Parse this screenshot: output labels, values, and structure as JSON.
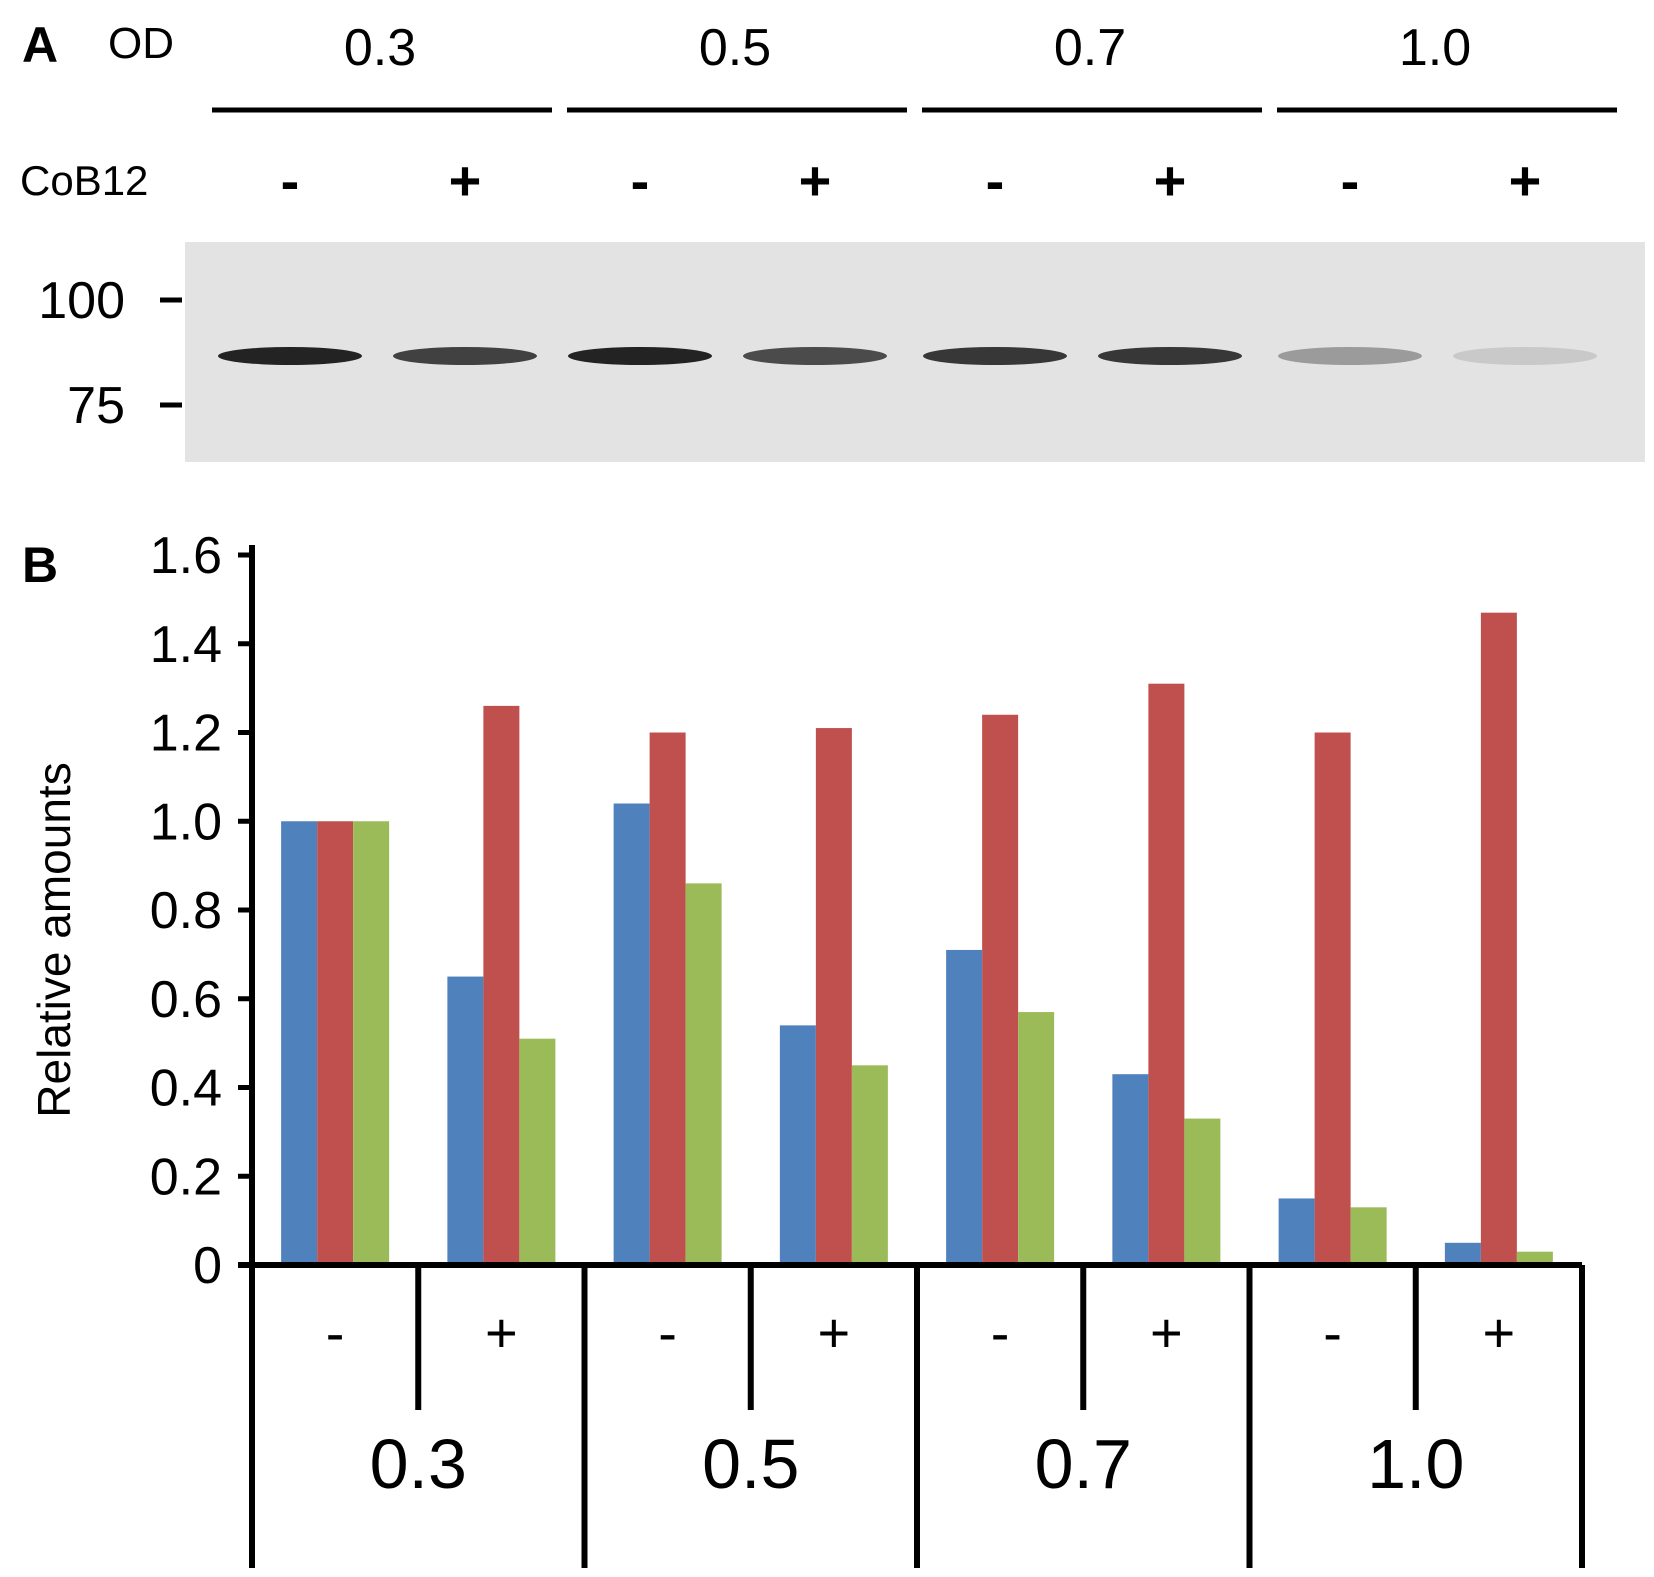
{
  "panel_a": {
    "label": "A",
    "od_label": "OD",
    "groups": [
      "0.3",
      "0.5",
      "0.7",
      "1.0"
    ],
    "treatment_label": "CoB12",
    "treatment_signs": [
      "-",
      "+",
      "-",
      "+",
      "-",
      "+",
      "-",
      "+"
    ],
    "marker_labels": [
      "100",
      "75"
    ],
    "band_intensities": [
      0.95,
      0.8,
      0.95,
      0.75,
      0.85,
      0.85,
      0.35,
      0.12
    ]
  },
  "panel_b": {
    "label": "B"
  },
  "chart_data": {
    "type": "bar",
    "ylabel": "Relative amounts",
    "ylim": [
      0,
      1.6
    ],
    "yticks": [
      "0",
      "0.2",
      "0.4",
      "0.6",
      "0.8",
      "1.0",
      "1.2",
      "1.4",
      "1.6"
    ],
    "categories": [
      "-",
      "+",
      "-",
      "+",
      "-",
      "+",
      "-",
      "+"
    ],
    "groups": [
      "0.3",
      "0.5",
      "0.7",
      "1.0"
    ],
    "colors": [
      "#4f81bd",
      "#c0504d",
      "#9bbb59"
    ],
    "series": [
      {
        "values": [
          1.0,
          0.65,
          1.04,
          0.54,
          0.71,
          0.43,
          0.15,
          0.05
        ]
      },
      {
        "values": [
          1.0,
          1.26,
          1.2,
          1.21,
          1.24,
          1.31,
          1.2,
          1.47
        ]
      },
      {
        "values": [
          1.0,
          0.51,
          0.86,
          0.45,
          0.57,
          0.33,
          0.13,
          0.03
        ]
      }
    ]
  }
}
